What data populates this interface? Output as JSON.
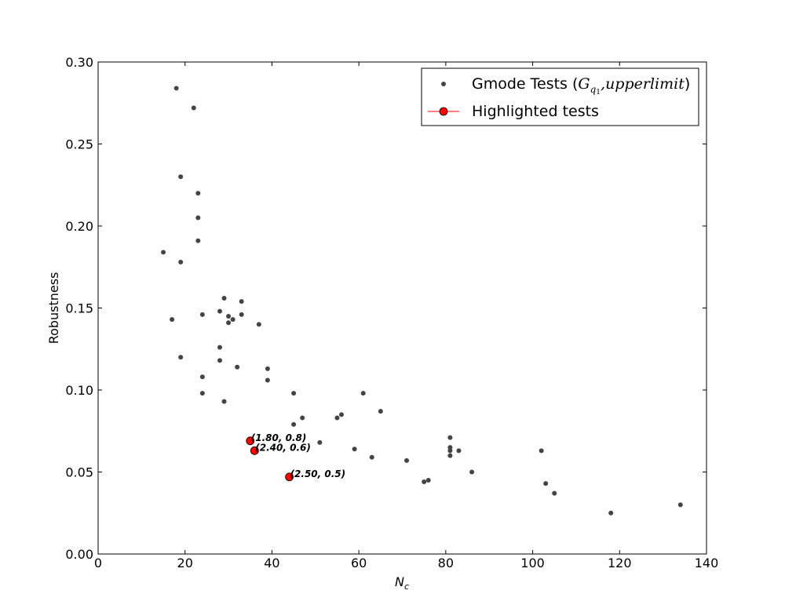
{
  "chart_data": {
    "type": "scatter",
    "title": "",
    "xlabel": "N_c",
    "xlabel_parts": {
      "main": "N",
      "sub": "c"
    },
    "ylabel": "Robustness",
    "xlim": [
      0,
      140
    ],
    "ylim": [
      0.0,
      0.3
    ],
    "x_ticks": [
      0,
      20,
      40,
      60,
      80,
      100,
      120,
      140
    ],
    "x_tick_labels": [
      "0",
      "20",
      "40",
      "60",
      "80",
      "100",
      "120",
      "140"
    ],
    "y_ticks": [
      0.0,
      0.05,
      0.1,
      0.15,
      0.2,
      0.25,
      0.3
    ],
    "y_tick_labels": [
      "0.00",
      "0.05",
      "0.10",
      "0.15",
      "0.20",
      "0.25",
      "0.30"
    ],
    "grid": false,
    "legend_position": "top-right",
    "colors": {
      "gmode": "#444444",
      "highlight": "#ff0000",
      "highlight_edge": "#000000"
    },
    "series": [
      {
        "name": "Gmode Tests (G_{q1}, upper limit)",
        "legend": {
          "prefix": "Gmode Tests (",
          "math_main": "G",
          "math_sub": "q",
          "math_subsub": "1",
          "math_rest": ",upperlimit",
          "suffix": ")"
        },
        "marker": "dot",
        "points": [
          [
            18,
            0.284
          ],
          [
            22,
            0.272
          ],
          [
            19,
            0.23
          ],
          [
            23,
            0.22
          ],
          [
            23,
            0.205
          ],
          [
            23,
            0.191
          ],
          [
            15,
            0.184
          ],
          [
            19,
            0.178
          ],
          [
            29,
            0.156
          ],
          [
            33,
            0.154
          ],
          [
            28,
            0.148
          ],
          [
            24,
            0.146
          ],
          [
            30,
            0.145
          ],
          [
            33,
            0.146
          ],
          [
            31,
            0.143
          ],
          [
            17,
            0.143
          ],
          [
            30,
            0.141
          ],
          [
            37,
            0.14
          ],
          [
            28,
            0.126
          ],
          [
            19,
            0.12
          ],
          [
            28,
            0.118
          ],
          [
            32,
            0.114
          ],
          [
            39,
            0.113
          ],
          [
            24,
            0.108
          ],
          [
            39,
            0.106
          ],
          [
            24,
            0.098
          ],
          [
            45,
            0.098
          ],
          [
            61,
            0.098
          ],
          [
            29,
            0.093
          ],
          [
            65,
            0.087
          ],
          [
            56,
            0.085
          ],
          [
            55,
            0.083
          ],
          [
            47,
            0.083
          ],
          [
            45,
            0.079
          ],
          [
            51,
            0.068
          ],
          [
            81,
            0.071
          ],
          [
            59,
            0.064
          ],
          [
            81,
            0.065
          ],
          [
            81,
            0.063
          ],
          [
            83,
            0.063
          ],
          [
            102,
            0.063
          ],
          [
            63,
            0.059
          ],
          [
            81,
            0.06
          ],
          [
            71,
            0.057
          ],
          [
            86,
            0.05
          ],
          [
            75,
            0.044
          ],
          [
            76,
            0.045
          ],
          [
            103,
            0.043
          ],
          [
            105,
            0.037
          ],
          [
            134,
            0.03
          ],
          [
            118,
            0.025
          ]
        ]
      },
      {
        "name": "Highlighted tests",
        "legend": {
          "label": "Highlighted tests"
        },
        "marker": "circle",
        "points": [
          [
            35,
            0.069,
            "(1.80, 0.8)"
          ],
          [
            36,
            0.063,
            "(2.40, 0.6)"
          ],
          [
            44,
            0.047,
            "(2.50, 0.5)"
          ]
        ]
      }
    ]
  }
}
